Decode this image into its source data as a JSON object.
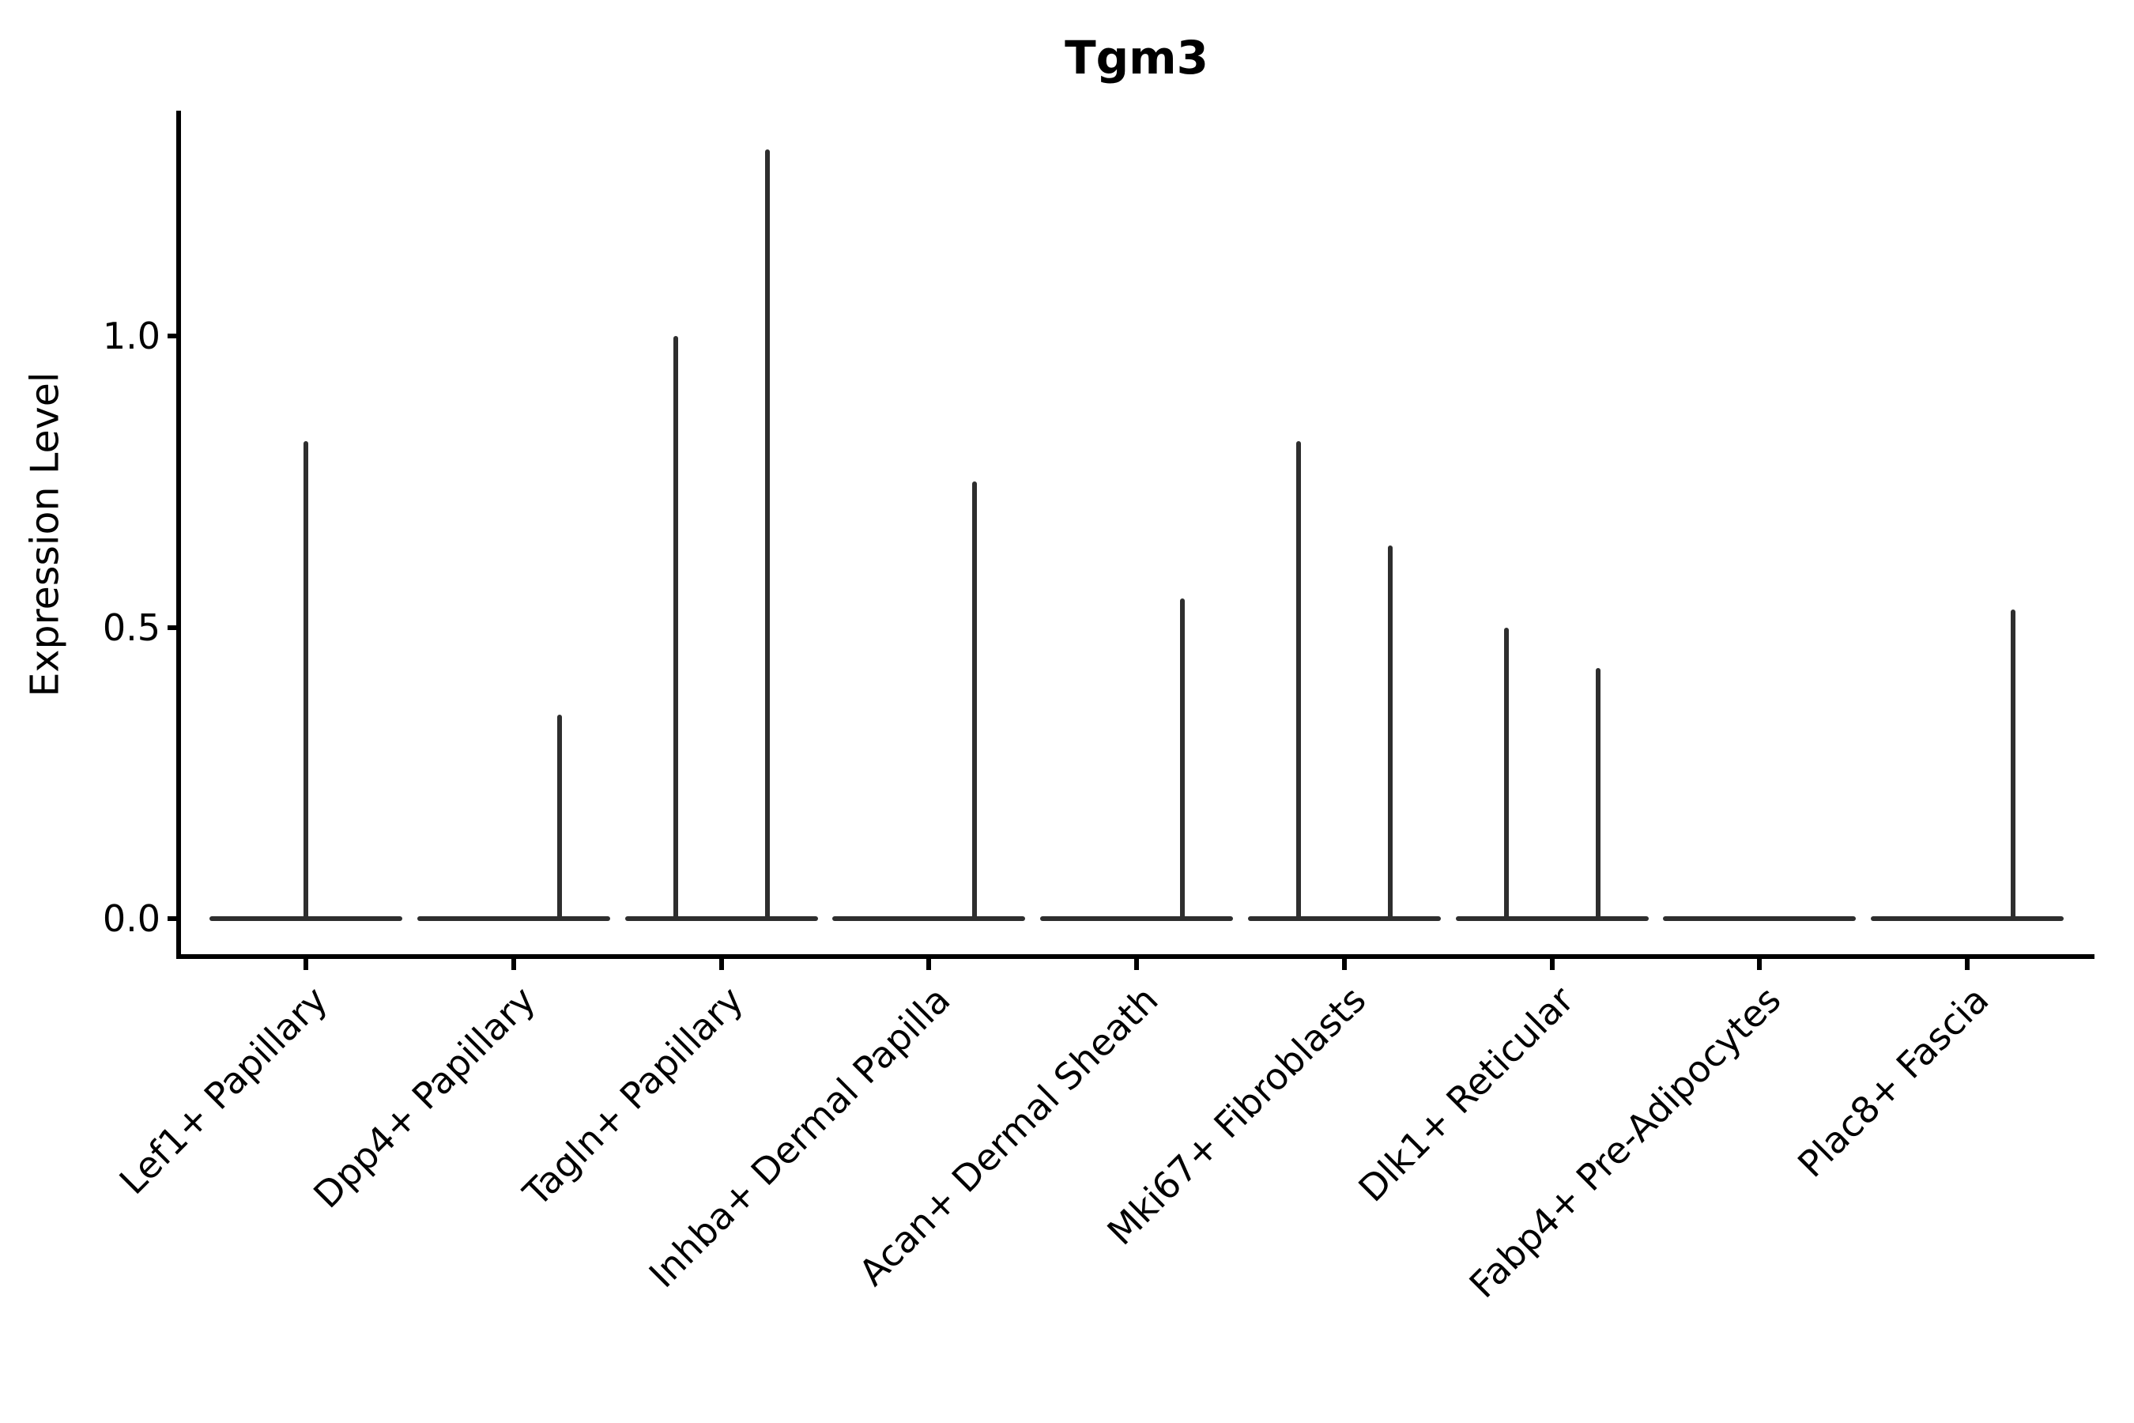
{
  "chart_data": {
    "type": "violin",
    "title": "Tgm3",
    "ylabel": "Expression Level",
    "xlabel": "",
    "yticks": [
      0.0,
      0.5,
      1.0
    ],
    "ylim": [
      -0.06,
      1.39
    ],
    "grid": false,
    "legend": "none",
    "description": "Violin plot of Tgm3 expression per fibroblast cluster; most cells at 0 giving flat bases with thin density spikes up to the max expressing cell",
    "categories": [
      "Lef1+ Papillary",
      "Dpp4+ Papillary",
      "Tagln+ Papillary",
      "Inhba+ Dermal Papilla",
      "Acan+ Dermal Sheath",
      "Mki67+ Fibroblasts",
      "Dlk1+ Reticular",
      "Fabp4+ Pre-Adipocytes",
      "Plac8+ Fascia"
    ],
    "violins": [
      {
        "category": "Lef1+ Papillary",
        "base_value": 0.0,
        "spikes": [
          {
            "side": 0,
            "max": 0.82
          }
        ]
      },
      {
        "category": "Dpp4+ Papillary",
        "base_value": 0.0,
        "spikes": [
          {
            "side": 1,
            "max": 0.35
          }
        ]
      },
      {
        "category": "Tagln+ Papillary",
        "base_value": 0.0,
        "spikes": [
          {
            "side": -1,
            "max": 1.0
          },
          {
            "side": 1,
            "max": 1.32
          }
        ]
      },
      {
        "category": "Inhba+ Dermal Papilla",
        "base_value": 0.0,
        "spikes": [
          {
            "side": 1,
            "max": 0.75
          }
        ]
      },
      {
        "category": "Acan+ Dermal Sheath",
        "base_value": 0.0,
        "spikes": [
          {
            "side": 1,
            "max": 0.55
          }
        ]
      },
      {
        "category": "Mki67+ Fibroblasts",
        "base_value": 0.0,
        "spikes": [
          {
            "side": -1,
            "max": 0.82
          },
          {
            "side": 1,
            "max": 0.64
          }
        ]
      },
      {
        "category": "Dlk1+ Reticular",
        "base_value": 0.0,
        "spikes": [
          {
            "side": -1,
            "max": 0.5
          },
          {
            "side": 1,
            "max": 0.43
          }
        ]
      },
      {
        "category": "Fabp4+ Pre-Adipocytes",
        "base_value": 0.0,
        "spikes": []
      },
      {
        "category": "Plac8+ Fascia",
        "base_value": 0.0,
        "spikes": [
          {
            "side": 1,
            "max": 0.53
          }
        ]
      }
    ],
    "colors": {
      "violin_line": "#2e2e2e",
      "axis": "#000000",
      "text": "#000000",
      "background": "#ffffff"
    }
  }
}
